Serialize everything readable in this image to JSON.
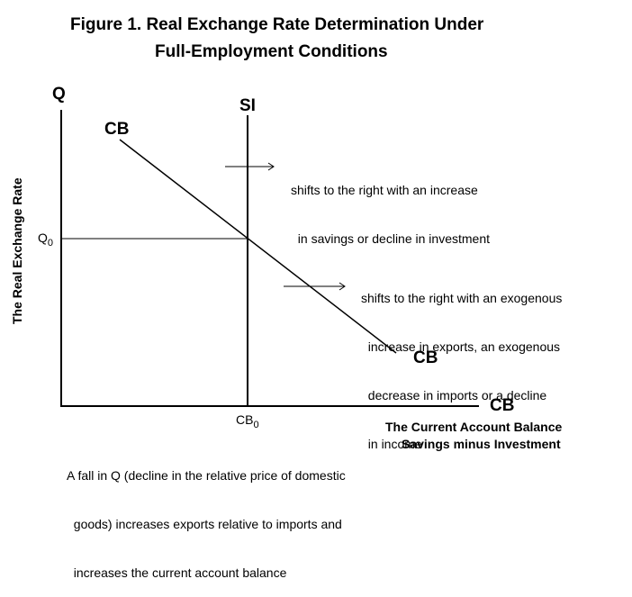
{
  "figure": {
    "title_line1": "Figure 1.  Real Exchange Rate Determination Under",
    "title_line2": "Full-Employment Conditions"
  },
  "axes": {
    "y_axis_letter": "Q",
    "y_axis_title": "The Real Exchange Rate",
    "x_axis_letter": "CB",
    "x_axis_title_line1": "The Current Account Balance",
    "x_axis_title_line2": "Savings minus Investment",
    "q0_base": "Q",
    "q0_sub": "0",
    "cb0_base": "CB",
    "cb0_sub": "0"
  },
  "curves": {
    "si_label": "SI",
    "cb_label_top": "CB",
    "cb_label_bottom": "CB"
  },
  "annotations": {
    "si_shift_line1": "shifts to the right with an increase",
    "si_shift_line2": "  in savings or decline in investment",
    "cb_shift_line1": "shifts to the right with an exogenous",
    "cb_shift_line2": "  increase in exports, an exogenous",
    "cb_shift_line3": "  decrease in imports or a decline",
    "cb_shift_line4": "  in income",
    "bottom_note_line1": "A fall in Q (decline in the relative price of domestic",
    "bottom_note_line2": "  goods) increases exports relative to imports and",
    "bottom_note_line3": "  increases the current account balance"
  }
}
